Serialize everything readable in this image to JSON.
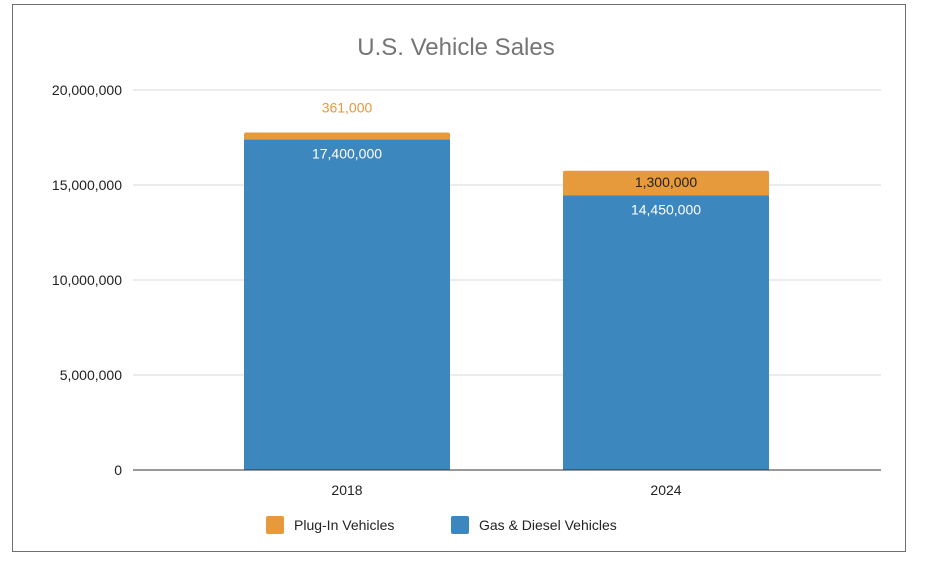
{
  "chart_data": {
    "type": "bar",
    "stacked": true,
    "title": "U.S. Vehicle Sales",
    "categories": [
      "2018",
      "2024"
    ],
    "series": [
      {
        "name": "Gas & Diesel Vehicles",
        "color": "#3d87bf",
        "values": [
          17400000,
          14450000
        ],
        "labels": [
          "17,400,000",
          "14,450,000"
        ]
      },
      {
        "name": "Plug-In Vehicles",
        "color": "#e69a3c",
        "values": [
          361000,
          1300000
        ],
        "labels": [
          "361,000",
          "1,300,000"
        ]
      }
    ],
    "ylim": [
      0,
      20000000
    ],
    "yticks": [
      0,
      5000000,
      10000000,
      15000000,
      20000000
    ],
    "ytick_labels": [
      "0",
      "5,000,000",
      "10,000,000",
      "15,000,000",
      "20,000,000"
    ],
    "grid": true,
    "legend_position": "bottom",
    "legend_order": [
      "Plug-In Vehicles",
      "Gas & Diesel Vehicles"
    ],
    "plug_in_label_colors": [
      "#e69a3c",
      "#222222"
    ]
  }
}
